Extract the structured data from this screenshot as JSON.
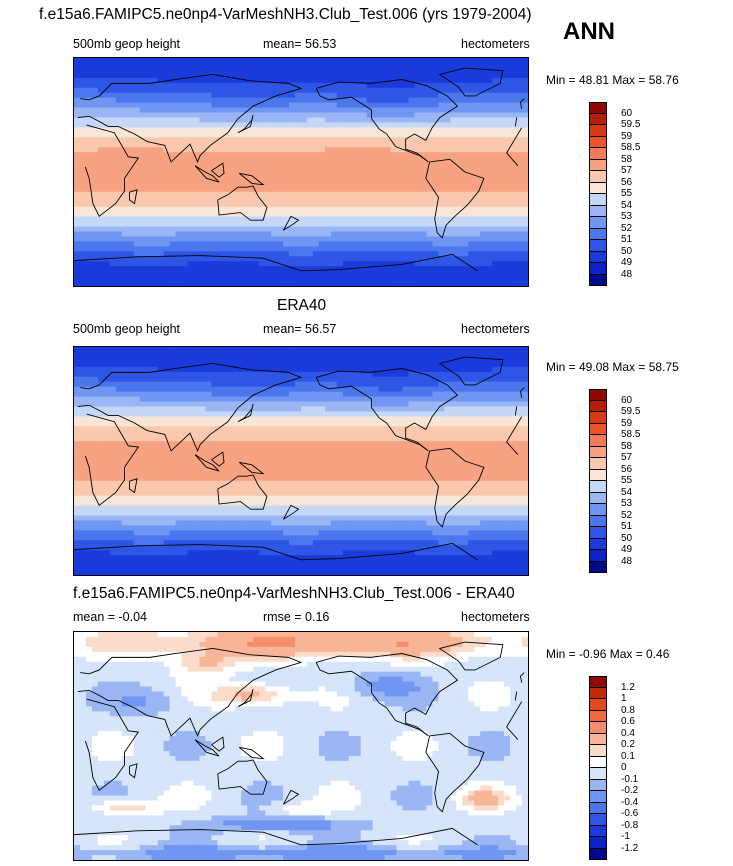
{
  "chart_data": [
    {
      "type": "heatmap",
      "title": "f.e15a6.FAMIPC5.ne0np4-VarMeshNH3.Club_Test.006 (yrs 1979-2004)",
      "season": "ANN",
      "left_label": "500mb geop height",
      "center_label": "mean=  56.53",
      "right_label": "hectometers",
      "minmax": "Min =  48.81 Max =  58.76",
      "levels": [
        "48",
        "49",
        "50",
        "51",
        "52",
        "53",
        "54",
        "55",
        "56",
        "57",
        "58",
        "58.5",
        "59",
        "59.5",
        "60"
      ],
      "colors": [
        "#000a8a",
        "#0e23c7",
        "#1a3bdc",
        "#2d56e6",
        "#4a76ee",
        "#6f96f2",
        "#9ab6f5",
        "#c6d8f8",
        "#f8e6d8",
        "#fac8ad",
        "#f7a382",
        "#f37b56",
        "#ec5327",
        "#d73a13",
        "#b51f06",
        "#8c0a02"
      ]
    },
    {
      "type": "heatmap",
      "title": "ERA40",
      "left_label": "500mb geop height",
      "center_label": "mean=  56.57",
      "right_label": "hectometers",
      "minmax": "Min =  49.08 Max =  58.75",
      "levels": [
        "48",
        "49",
        "50",
        "51",
        "52",
        "53",
        "54",
        "55",
        "56",
        "57",
        "58",
        "58.5",
        "59",
        "59.5",
        "60"
      ],
      "colors": [
        "#000a8a",
        "#0e23c7",
        "#1a3bdc",
        "#2d56e6",
        "#4a76ee",
        "#6f96f2",
        "#9ab6f5",
        "#c6d8f8",
        "#f8e6d8",
        "#fac8ad",
        "#f7a382",
        "#f37b56",
        "#ec5327",
        "#d73a13",
        "#b51f06",
        "#8c0a02"
      ]
    },
    {
      "type": "heatmap",
      "title": "f.e15a6.FAMIPC5.ne0np4-VarMeshNH3.Club_Test.006 - ERA40",
      "left_label": "mean =  -0.04",
      "center_label": "rmse =   0.16",
      "right_label": "hectometers",
      "minmax": "Min =  -0.96 Max =   0.46",
      "levels": [
        "-1.2",
        "-1",
        "-0.8",
        "-0.6",
        "-0.4",
        "-0.2",
        "-0.1",
        "0",
        "0.1",
        "0.2",
        "0.4",
        "0.6",
        "0.8",
        "1",
        "1.2"
      ],
      "colors": [
        "#000a8a",
        "#0e23c7",
        "#1a3bdc",
        "#2d56e6",
        "#4a76ee",
        "#6f96f2",
        "#9ab6f5",
        "#d6e5fa",
        "#ffffff",
        "#fbdccb",
        "#f8b597",
        "#f48e6a",
        "#ee6a40",
        "#e04a1c",
        "#c02c08",
        "#8c0a02"
      ]
    }
  ]
}
